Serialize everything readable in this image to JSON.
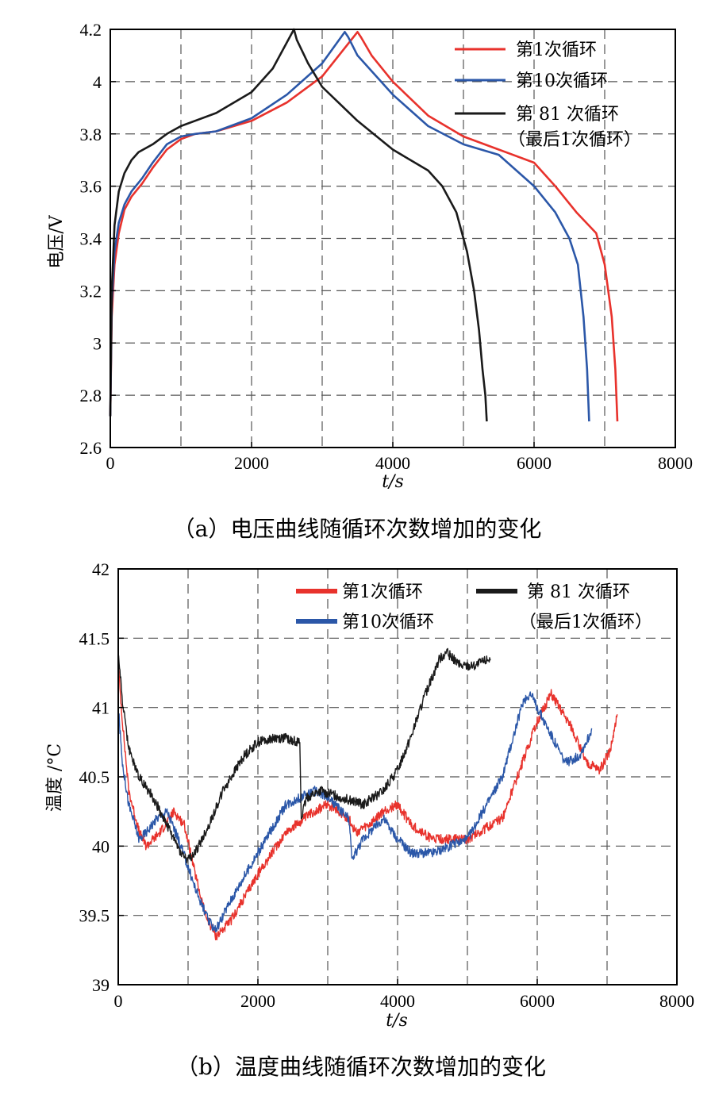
{
  "chart_data": [
    {
      "type": "line",
      "xlabel": "t/s",
      "ylabel": "电压/V",
      "xlim": [
        0,
        8000
      ],
      "ylim": [
        2.6,
        4.2
      ],
      "xticks": [
        0,
        2000,
        4000,
        6000,
        8000
      ],
      "yticks": [
        2.6,
        2.8,
        3,
        3.2,
        3.4,
        3.6,
        3.8,
        4,
        4.2
      ],
      "grid": true,
      "legend_position": "top-right",
      "caption": "（a）电压曲线随循环次数增加的变化",
      "series": [
        {
          "name": "第1次循环",
          "color": "#e8322c",
          "x": [
            0,
            20,
            60,
            120,
            200,
            300,
            450,
            600,
            800,
            1000,
            1200,
            1500,
            2000,
            2500,
            3000,
            3500,
            3550,
            3700,
            4000,
            4500,
            5000,
            5500,
            6000,
            6300,
            6600,
            6880,
            7000,
            7100,
            7150,
            7180
          ],
          "y": [
            2.72,
            3.1,
            3.3,
            3.42,
            3.51,
            3.56,
            3.61,
            3.67,
            3.74,
            3.78,
            3.8,
            3.81,
            3.85,
            3.92,
            4.02,
            4.19,
            4.17,
            4.1,
            4.0,
            3.87,
            3.79,
            3.74,
            3.69,
            3.6,
            3.5,
            3.42,
            3.3,
            3.1,
            2.9,
            2.7
          ]
        },
        {
          "name": "第10次循环",
          "color": "#2b57a8",
          "x": [
            0,
            20,
            60,
            120,
            200,
            300,
            450,
            600,
            800,
            1000,
            1200,
            1500,
            2000,
            2500,
            3000,
            3320,
            3370,
            3500,
            4000,
            4500,
            5000,
            5500,
            6000,
            6300,
            6500,
            6620,
            6700,
            6750,
            6780
          ],
          "y": [
            2.72,
            3.15,
            3.35,
            3.46,
            3.53,
            3.58,
            3.63,
            3.69,
            3.76,
            3.79,
            3.8,
            3.81,
            3.86,
            3.95,
            4.07,
            4.19,
            4.17,
            4.1,
            3.95,
            3.83,
            3.76,
            3.72,
            3.6,
            3.5,
            3.4,
            3.3,
            3.1,
            2.9,
            2.7
          ]
        },
        {
          "name": "第 81 次循环",
          "color": "#1a1a1a",
          "x": [
            0,
            20,
            60,
            120,
            200,
            300,
            400,
            600,
            800,
            1000,
            1500,
            2000,
            2300,
            2600,
            2640,
            2800,
            3000,
            3500,
            4000,
            4500,
            4700,
            4900,
            5050,
            5150,
            5220,
            5270,
            5310,
            5330
          ],
          "y": [
            2.72,
            3.2,
            3.45,
            3.58,
            3.65,
            3.7,
            3.73,
            3.76,
            3.8,
            3.83,
            3.88,
            3.96,
            4.05,
            4.2,
            4.16,
            4.07,
            3.98,
            3.85,
            3.74,
            3.66,
            3.6,
            3.5,
            3.35,
            3.2,
            3.05,
            2.9,
            2.8,
            2.7
          ]
        }
      ]
    },
    {
      "type": "line",
      "xlabel": "t/s",
      "ylabel": "温度 /°C",
      "xlim": [
        0,
        8000
      ],
      "ylim": [
        39,
        42
      ],
      "xticks": [
        0,
        2000,
        4000,
        6000,
        8000
      ],
      "yticks": [
        39,
        39.5,
        40,
        40.5,
        41,
        41.5,
        42
      ],
      "grid": true,
      "legend_position": "top",
      "caption": "（b）温度曲线随循环次数增加的变化",
      "series": [
        {
          "name": "第1次循环",
          "color": "#e8322c",
          "x": [
            0,
            60,
            150,
            300,
            400,
            600,
            800,
            950,
            1100,
            1250,
            1400,
            1600,
            2000,
            2400,
            2800,
            3000,
            3300,
            3400,
            3600,
            3800,
            4000,
            4200,
            4500,
            5000,
            5500,
            6000,
            6200,
            6500,
            6700,
            6900,
            7050,
            7150
          ],
          "y": [
            41.3,
            40.9,
            40.4,
            40.1,
            40.0,
            40.1,
            40.25,
            40.15,
            39.8,
            39.5,
            39.35,
            39.45,
            39.8,
            40.1,
            40.25,
            40.3,
            40.2,
            40.1,
            40.15,
            40.25,
            40.3,
            40.15,
            40.05,
            40.05,
            40.2,
            40.9,
            41.1,
            40.85,
            40.6,
            40.55,
            40.7,
            40.95
          ]
        },
        {
          "name": "第10次循环",
          "color": "#2b57a8",
          "x": [
            0,
            60,
            150,
            300,
            400,
            550,
            700,
            900,
            1100,
            1300,
            1400,
            1600,
            2000,
            2400,
            2800,
            3000,
            3300,
            3350,
            3500,
            3800,
            4000,
            4200,
            4500,
            5000,
            5500,
            5800,
            5900,
            6100,
            6400,
            6600,
            6750,
            6780
          ],
          "y": [
            41.0,
            40.6,
            40.3,
            40.05,
            40.1,
            40.2,
            40.25,
            40.0,
            39.7,
            39.45,
            39.4,
            39.6,
            39.95,
            40.3,
            40.4,
            40.35,
            40.2,
            39.9,
            40.05,
            40.2,
            40.05,
            39.95,
            39.95,
            40.05,
            40.5,
            41.05,
            41.1,
            40.9,
            40.6,
            40.65,
            40.8,
            40.85
          ]
        },
        {
          "name": "第 81 次循环",
          "color": "#1a1a1a",
          "x": [
            0,
            60,
            150,
            300,
            500,
            700,
            900,
            1000,
            1100,
            1300,
            1500,
            1800,
            2000,
            2200,
            2400,
            2600,
            2620,
            2700,
            2900,
            3200,
            3500,
            3800,
            4000,
            4200,
            4400,
            4600,
            4700,
            4900,
            5100,
            5300,
            5330
          ],
          "y": [
            41.4,
            41.05,
            40.7,
            40.5,
            40.35,
            40.15,
            39.95,
            39.9,
            39.95,
            40.15,
            40.4,
            40.65,
            40.75,
            40.78,
            40.78,
            40.75,
            40.2,
            40.35,
            40.4,
            40.35,
            40.3,
            40.4,
            40.55,
            40.8,
            41.1,
            41.35,
            41.4,
            41.3,
            41.3,
            41.35,
            41.35
          ]
        }
      ]
    }
  ],
  "legend_extra_line": "（最后1次循环）"
}
